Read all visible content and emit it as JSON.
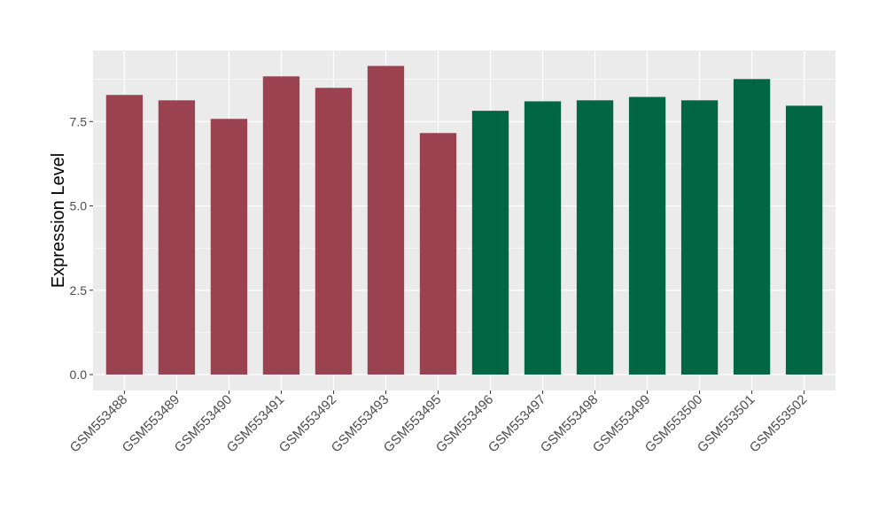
{
  "chart_data": {
    "type": "bar",
    "title": "",
    "xlabel": "",
    "ylabel": "Expression Level",
    "ylim": [
      0,
      9.6
    ],
    "yticks": [
      "0.0",
      "2.5",
      "5.0",
      "7.5"
    ],
    "grid": true,
    "legend": "none",
    "categories": [
      "GSM553488",
      "GSM553489",
      "GSM553490",
      "GSM553491",
      "GSM553492",
      "GSM553493",
      "GSM553495",
      "GSM553496",
      "GSM553497",
      "GSM553498",
      "GSM553499",
      "GSM553500",
      "GSM553501",
      "GSM553502"
    ],
    "values": [
      8.29,
      8.13,
      7.58,
      8.84,
      8.5,
      9.15,
      7.16,
      7.82,
      8.1,
      8.13,
      8.23,
      8.13,
      8.76,
      7.97
    ],
    "bar_colors": [
      "#9A4250",
      "#9A4250",
      "#9A4250",
      "#9A4250",
      "#9A4250",
      "#9A4250",
      "#9A4250",
      "#006644",
      "#006644",
      "#006644",
      "#006644",
      "#006644",
      "#006644",
      "#006644"
    ],
    "panel_background": "#EBEBEB"
  }
}
